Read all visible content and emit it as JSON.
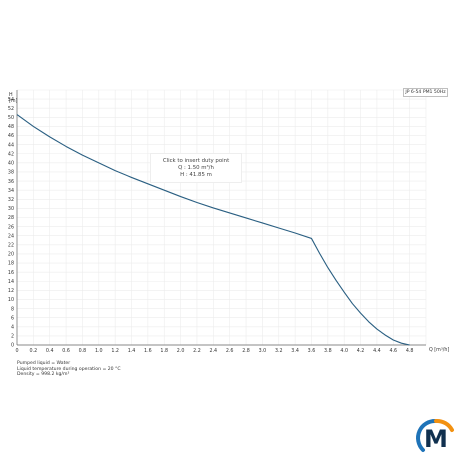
{
  "chart_data": {
    "type": "line",
    "xlabel": "Q [m³/h]",
    "ylabel_unit": "H [m]",
    "xlim": [
      0,
      5.0
    ],
    "ylim": [
      0,
      56
    ],
    "x_ticks": [
      "0",
      "0.2",
      "0.4",
      "0.6",
      "0.8",
      "1.0",
      "1.2",
      "1.4",
      "1.6",
      "1.8",
      "2.0",
      "2.2",
      "2.4",
      "2.6",
      "2.8",
      "3.0",
      "3.2",
      "3.4",
      "3.6",
      "3.8",
      "4.0",
      "4.2",
      "4.4",
      "4.6",
      "4.8"
    ],
    "y_ticks": [
      "0",
      "2",
      "4",
      "6",
      "8",
      "10",
      "12",
      "14",
      "16",
      "18",
      "20",
      "22",
      "24",
      "26",
      "28",
      "30",
      "32",
      "34",
      "36",
      "38",
      "40",
      "42",
      "44",
      "46",
      "48",
      "50",
      "52",
      "54"
    ],
    "grid": true,
    "series": [
      {
        "name": "JP 6-54 PM1 50Hz",
        "color": "#2a5f82",
        "x": [
          0,
          0.2,
          0.4,
          0.6,
          0.8,
          1.0,
          1.2,
          1.4,
          1.6,
          1.8,
          2.0,
          2.2,
          2.4,
          2.6,
          2.8,
          3.0,
          3.2,
          3.4,
          3.6,
          3.7,
          3.8,
          3.9,
          4.0,
          4.1,
          4.2,
          4.3,
          4.4,
          4.5,
          4.6,
          4.7,
          4.8
        ],
        "y": [
          50.6,
          48.0,
          45.7,
          43.6,
          41.7,
          40.0,
          38.3,
          36.8,
          35.4,
          34.0,
          32.6,
          31.3,
          30.1,
          29.0,
          27.9,
          26.8,
          25.7,
          24.6,
          23.4,
          20.1,
          17.0,
          14.2,
          11.6,
          9.1,
          7.0,
          5.1,
          3.5,
          2.2,
          1.1,
          0.4,
          0.0
        ]
      }
    ]
  },
  "legend": {
    "text": "JP 6-54 PM1 50Hz"
  },
  "tooltip": {
    "line1": "Click to insert duty point",
    "line2": "Q : 1.50 m³/h",
    "line3": "H : 41.85 m"
  },
  "footnote": {
    "line1": "Pumped liquid = Water",
    "line2": "Liquid temperature during operation = 20 °C",
    "line3": "Density = 998.2 kg/m³"
  },
  "logo": {
    "letter": "M",
    "colors": {
      "ring_blue": "#1e73b8",
      "ring_orange": "#f29111",
      "letter": "#10304f"
    }
  }
}
